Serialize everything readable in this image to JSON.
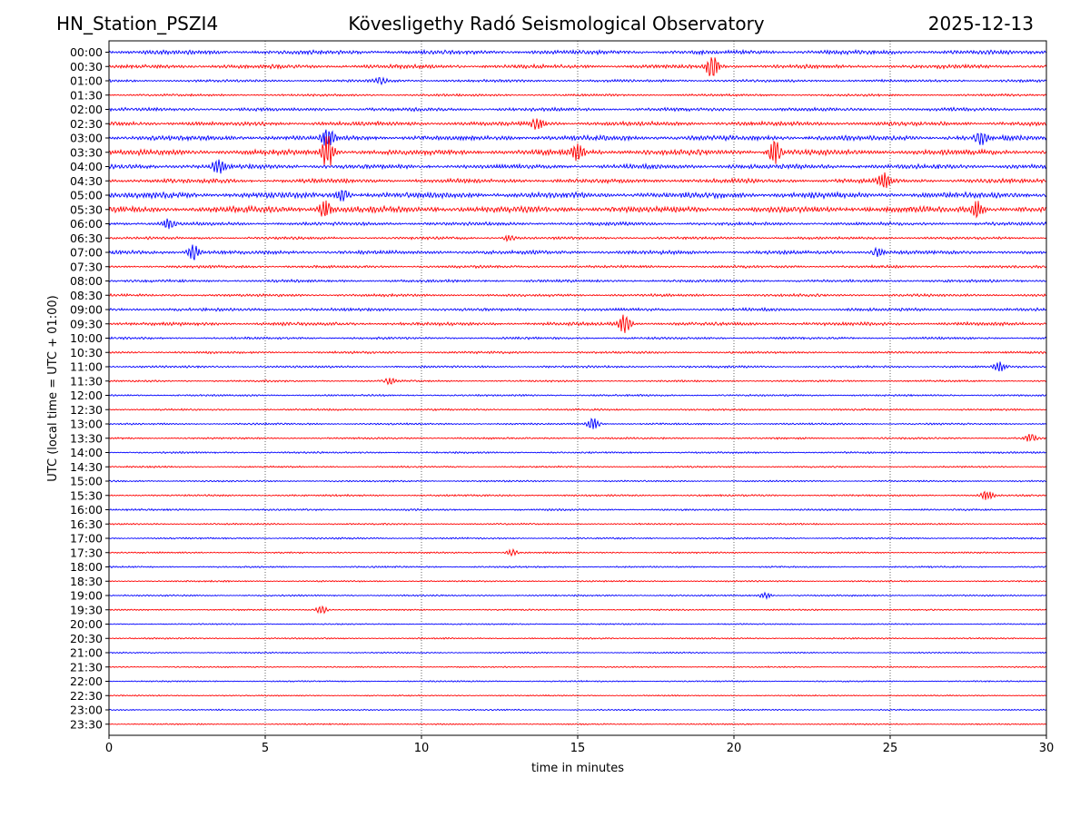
{
  "header": {
    "station": "HN_Station_PSZI4",
    "observatory": "Kövesligethy Radó Seismological Observatory",
    "date": "2025-12-13"
  },
  "chart_data": {
    "type": "line",
    "title": "Kövesligethy Radó Seismological Observatory",
    "xlabel": "time in minutes",
    "ylabel": "UTC (local time = UTC + 01:00)",
    "xlim": [
      0,
      30
    ],
    "xticks": [
      0,
      5,
      10,
      15,
      20,
      25,
      30
    ],
    "grid": "vertical dotted at x ticks",
    "rows": [
      "00:00",
      "00:30",
      "01:00",
      "01:30",
      "02:00",
      "02:30",
      "03:00",
      "03:30",
      "04:00",
      "04:30",
      "05:00",
      "05:30",
      "06:00",
      "06:30",
      "07:00",
      "07:30",
      "08:00",
      "08:30",
      "09:00",
      "09:30",
      "10:00",
      "10:30",
      "11:00",
      "11:30",
      "12:00",
      "12:30",
      "13:00",
      "13:30",
      "14:00",
      "14:30",
      "15:00",
      "15:30",
      "16:00",
      "16:30",
      "17:00",
      "17:30",
      "18:00",
      "18:30",
      "19:00",
      "19:30",
      "20:00",
      "20:30",
      "21:00",
      "21:30",
      "22:00",
      "22:30",
      "23:00",
      "23:30"
    ],
    "colors": [
      "#0000ff",
      "#ff0000"
    ],
    "activity": [
      0.55,
      0.5,
      0.35,
      0.3,
      0.45,
      0.55,
      0.65,
      0.7,
      0.6,
      0.55,
      0.75,
      0.8,
      0.45,
      0.35,
      0.5,
      0.35,
      0.35,
      0.35,
      0.4,
      0.45,
      0.3,
      0.3,
      0.3,
      0.25,
      0.25,
      0.25,
      0.25,
      0.25,
      0.25,
      0.22,
      0.22,
      0.25,
      0.25,
      0.22,
      0.22,
      0.22,
      0.22,
      0.2,
      0.22,
      0.2,
      0.18,
      0.2,
      0.18,
      0.18,
      0.18,
      0.18,
      0.18,
      0.18
    ],
    "events": [
      {
        "row": "00:30",
        "x": 19.3,
        "amp": 12
      },
      {
        "row": "01:00",
        "x": 8.7,
        "amp": 3
      },
      {
        "row": "02:30",
        "x": 13.7,
        "amp": 6
      },
      {
        "row": "03:00",
        "x": 7.0,
        "amp": 10
      },
      {
        "row": "03:00",
        "x": 27.9,
        "amp": 6
      },
      {
        "row": "03:30",
        "x": 7.0,
        "amp": 18
      },
      {
        "row": "03:30",
        "x": 21.3,
        "amp": 12
      },
      {
        "row": "03:30",
        "x": 15.0,
        "amp": 8
      },
      {
        "row": "04:00",
        "x": 3.5,
        "amp": 7
      },
      {
        "row": "04:30",
        "x": 24.8,
        "amp": 8
      },
      {
        "row": "05:00",
        "x": 7.5,
        "amp": 6
      },
      {
        "row": "05:30",
        "x": 6.9,
        "amp": 9
      },
      {
        "row": "05:30",
        "x": 27.8,
        "amp": 9
      },
      {
        "row": "06:00",
        "x": 1.9,
        "amp": 5
      },
      {
        "row": "06:30",
        "x": 12.8,
        "amp": 3
      },
      {
        "row": "07:00",
        "x": 2.7,
        "amp": 8
      },
      {
        "row": "07:00",
        "x": 24.6,
        "amp": 4
      },
      {
        "row": "09:30",
        "x": 16.5,
        "amp": 10
      },
      {
        "row": "11:00",
        "x": 28.5,
        "amp": 5
      },
      {
        "row": "11:30",
        "x": 9.0,
        "amp": 3
      },
      {
        "row": "13:00",
        "x": 15.5,
        "amp": 6
      },
      {
        "row": "13:30",
        "x": 29.5,
        "amp": 4
      },
      {
        "row": "15:30",
        "x": 28.1,
        "amp": 5
      },
      {
        "row": "17:30",
        "x": 12.9,
        "amp": 3
      },
      {
        "row": "19:00",
        "x": 21.0,
        "amp": 3
      },
      {
        "row": "19:30",
        "x": 6.8,
        "amp": 4
      }
    ]
  }
}
